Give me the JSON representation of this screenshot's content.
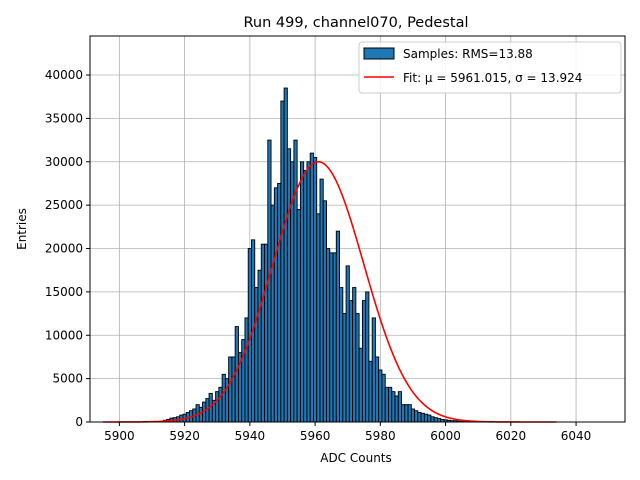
{
  "chart_data": {
    "type": "bar",
    "title": "Run 499, channel070, Pedestal",
    "xlabel": "ADC Counts",
    "ylabel": "Entries",
    "xlim": [
      5891,
      6055
    ],
    "ylim": [
      0,
      44500
    ],
    "xticks": [
      5900,
      5920,
      5940,
      5960,
      5980,
      6000,
      6020,
      6040
    ],
    "yticks": [
      0,
      5000,
      10000,
      15000,
      20000,
      25000,
      30000,
      35000,
      40000
    ],
    "grid": true,
    "legend_position": "top-right",
    "colors": {
      "bars": "#1f77b4",
      "bar_edge": "#000000",
      "fit": "#ff0000",
      "grid": "#b0b0b0"
    },
    "histogram": {
      "name": "Samples: RMS=13.88",
      "bin_width": 1,
      "bin_centers": [
        5914,
        5915,
        5916,
        5917,
        5918,
        5919,
        5920,
        5921,
        5922,
        5923,
        5924,
        5925,
        5926,
        5927,
        5928,
        5929,
        5930,
        5931,
        5932,
        5933,
        5934,
        5935,
        5936,
        5937,
        5938,
        5939,
        5940,
        5941,
        5942,
        5943,
        5944,
        5945,
        5946,
        5947,
        5948,
        5949,
        5950,
        5951,
        5952,
        5953,
        5954,
        5955,
        5956,
        5957,
        5958,
        5959,
        5960,
        5961,
        5962,
        5963,
        5964,
        5965,
        5966,
        5967,
        5968,
        5969,
        5970,
        5971,
        5972,
        5973,
        5974,
        5975,
        5976,
        5977,
        5978,
        5979,
        5980,
        5981,
        5982,
        5983,
        5984,
        5985,
        5986,
        5987,
        5988,
        5989,
        5990,
        5991,
        5992,
        5993,
        5994,
        5995,
        5996,
        5997,
        5998,
        5999,
        6000,
        6001,
        6002,
        6003,
        6004,
        6005,
        6006,
        6007,
        6008,
        6009
      ],
      "values": [
        200,
        300,
        450,
        500,
        600,
        800,
        900,
        1100,
        1300,
        1500,
        2000,
        1700,
        2300,
        2700,
        3300,
        2500,
        3500,
        4000,
        5500,
        5000,
        7500,
        7500,
        11000,
        8000,
        9500,
        12000,
        20000,
        21000,
        15500,
        17500,
        20500,
        20500,
        32500,
        25000,
        27000,
        27500,
        37000,
        38500,
        31500,
        30000,
        32500,
        24500,
        30000,
        29000,
        30000,
        31000,
        30500,
        24000,
        28000,
        25500,
        20000,
        19500,
        19500,
        22000,
        15500,
        12500,
        18000,
        14000,
        15500,
        12500,
        8500,
        14000,
        15000,
        7000,
        12000,
        7500,
        6000,
        5500,
        4000,
        4000,
        3500,
        3000,
        3500,
        2000,
        2000,
        2000,
        1500,
        1300,
        1100,
        1000,
        900,
        800,
        600,
        500,
        400,
        300,
        250,
        200,
        150,
        150,
        100,
        100,
        80,
        60,
        40,
        20
      ]
    },
    "fit": {
      "name": "Fit: μ = 5961.015, σ = 13.924",
      "mu": 5961.015,
      "sigma": 13.924,
      "amplitude": 30000,
      "x_range": [
        5895,
        6034
      ]
    }
  }
}
